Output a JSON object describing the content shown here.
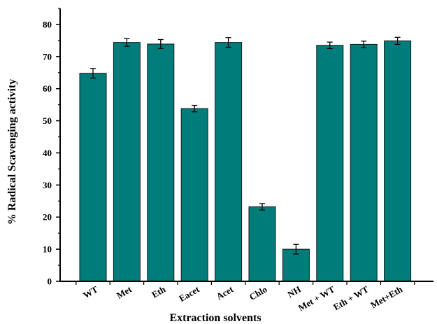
{
  "chart_data": {
    "type": "bar",
    "title": "",
    "xlabel": "Extraction solvents",
    "ylabel": "% Radical Scavenging activity",
    "ylim": [
      0,
      85
    ],
    "yticks": [
      0,
      10,
      20,
      30,
      40,
      50,
      60,
      70,
      80
    ],
    "categories": [
      "WT",
      "Met",
      "Eth",
      "Eacet",
      "Acet",
      "Chlo",
      "NH",
      "Met + WT",
      "Eth + WT",
      "Met+Eth"
    ],
    "values": [
      64.8,
      74.4,
      73.9,
      53.8,
      74.4,
      23.2,
      10.0,
      73.5,
      73.8,
      74.9
    ],
    "errors": [
      1.5,
      1.2,
      1.4,
      1.0,
      1.5,
      1.0,
      1.5,
      1.0,
      1.0,
      1.1
    ],
    "bar_color": "#007d7a",
    "grid": false,
    "legend": "none"
  }
}
